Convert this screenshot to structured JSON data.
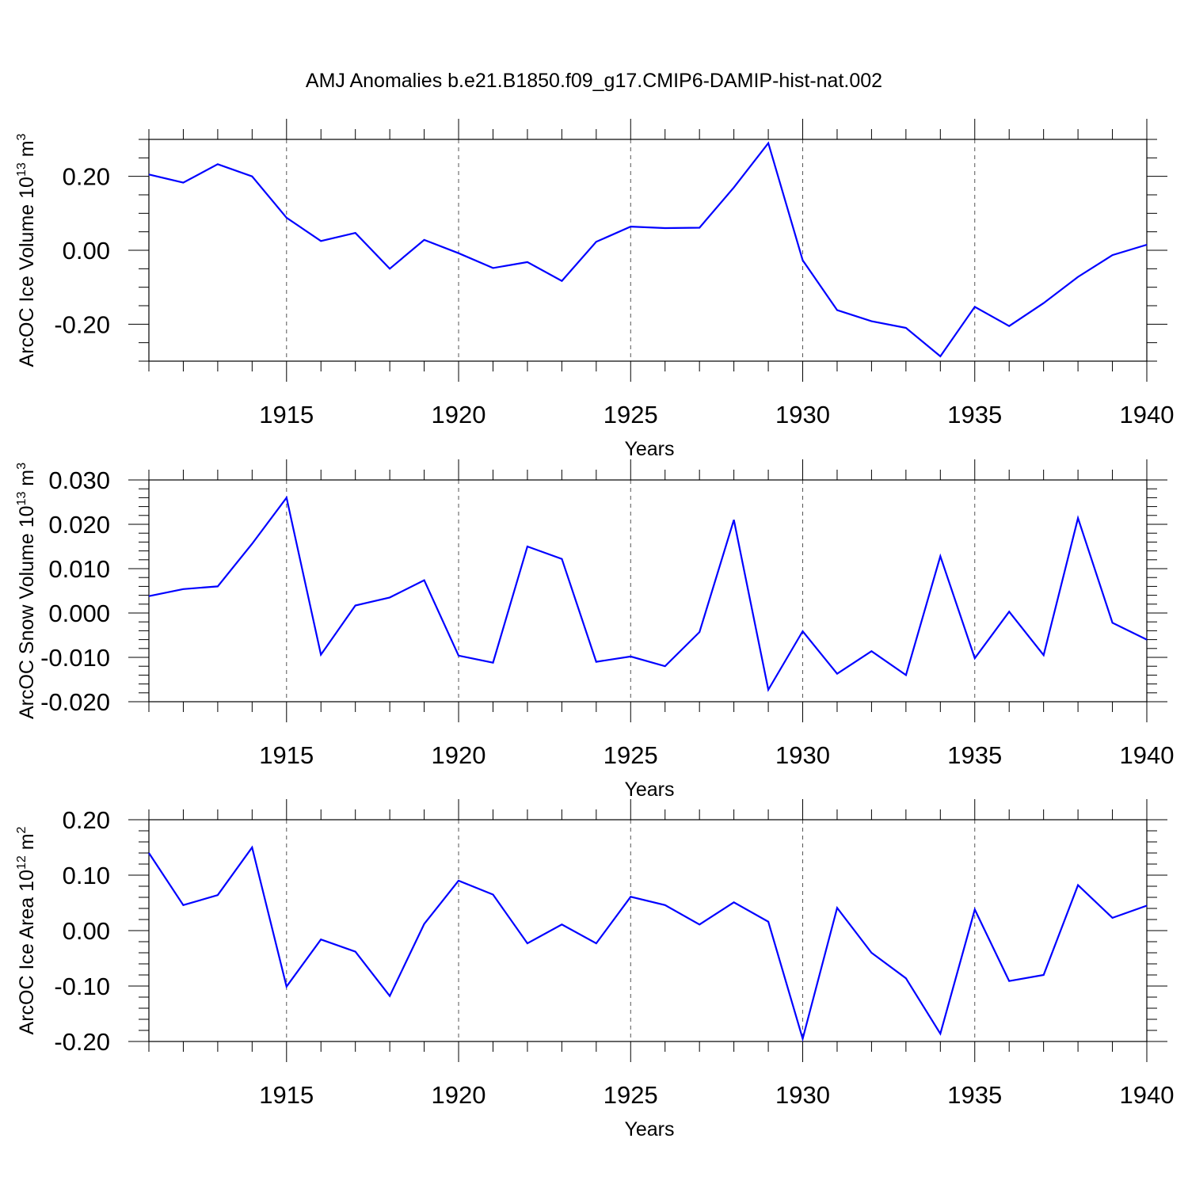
{
  "figure_title": "AMJ Anomalies b.e21.B1850.f09_g17.CMIP6-DAMIP-hist-nat.002",
  "colors": {
    "line": "#0000ff",
    "axes": "#000000",
    "grid": "#555555",
    "background": "#ffffff"
  },
  "chart_data": [
    {
      "type": "line",
      "title": "AMJ Anomalies b.e21.B1850.f09_g17.CMIP6-DAMIP-hist-nat.002",
      "xlabel": "Years",
      "ylabel_main": "ArcOC Ice Volume 10",
      "ylabel_sup": "13",
      "ylabel_unit": "m",
      "ylabel_unit_sup": "3",
      "xlim": [
        1911,
        1940
      ],
      "ylim": [
        -0.3,
        0.3
      ],
      "x_ticks": [
        1915,
        1920,
        1925,
        1930,
        1935,
        1940
      ],
      "x_tick_labels": [
        "1915",
        "1920",
        "1925",
        "1930",
        "1935",
        "1940"
      ],
      "y_ticks": [
        -0.2,
        0.0,
        0.2
      ],
      "y_tick_labels": [
        "-0.20",
        "0.00",
        "0.20"
      ],
      "y_minor_step": 0.05,
      "x_minor_step": 1,
      "grid": "vertical dashed at major x ticks",
      "x": [
        1911,
        1912,
        1913,
        1914,
        1915,
        1916,
        1917,
        1918,
        1919,
        1920,
        1921,
        1922,
        1923,
        1924,
        1925,
        1926,
        1927,
        1928,
        1929,
        1930,
        1931,
        1932,
        1933,
        1934,
        1935,
        1936,
        1937,
        1938,
        1939,
        1940
      ],
      "values": [
        0.205,
        0.183,
        0.233,
        0.2,
        0.088,
        0.025,
        0.047,
        -0.05,
        0.028,
        -0.008,
        -0.048,
        -0.032,
        -0.083,
        0.023,
        0.064,
        0.06,
        0.061,
        0.17,
        0.29,
        -0.027,
        -0.162,
        -0.192,
        -0.21,
        -0.287,
        -0.153,
        -0.205,
        -0.143,
        -0.072,
        -0.013,
        0.015
      ]
    },
    {
      "type": "line",
      "xlabel": "Years",
      "ylabel_main": "ArcOC Snow Volume 10",
      "ylabel_sup": "13",
      "ylabel_unit": "m",
      "ylabel_unit_sup": "3",
      "xlim": [
        1911,
        1940
      ],
      "ylim": [
        -0.02,
        0.03
      ],
      "x_ticks": [
        1915,
        1920,
        1925,
        1930,
        1935,
        1940
      ],
      "x_tick_labels": [
        "1915",
        "1920",
        "1925",
        "1930",
        "1935",
        "1940"
      ],
      "y_ticks": [
        -0.02,
        -0.01,
        0.0,
        0.01,
        0.02,
        0.03
      ],
      "y_tick_labels": [
        "-0.020",
        "-0.010",
        "0.000",
        "0.010",
        "0.020",
        "0.030"
      ],
      "y_minor_step": 0.002,
      "x_minor_step": 1,
      "grid": "vertical dashed at major x ticks",
      "x": [
        1911,
        1912,
        1913,
        1914,
        1915,
        1916,
        1917,
        1918,
        1919,
        1920,
        1921,
        1922,
        1923,
        1924,
        1925,
        1926,
        1927,
        1928,
        1929,
        1930,
        1931,
        1932,
        1933,
        1934,
        1935,
        1936,
        1937,
        1938,
        1939,
        1940
      ],
      "values": [
        0.0038,
        0.0054,
        0.006,
        0.0156,
        0.026,
        -0.0094,
        0.0017,
        0.0035,
        0.0074,
        -0.0096,
        -0.0112,
        0.015,
        0.0122,
        -0.011,
        -0.0098,
        -0.012,
        -0.0043,
        0.021,
        -0.0173,
        -0.0041,
        -0.0137,
        -0.0086,
        -0.014,
        0.0128,
        -0.0102,
        0.0003,
        -0.0095,
        0.0214,
        -0.0022,
        -0.006
      ]
    },
    {
      "type": "line",
      "xlabel": "Years",
      "ylabel_main": "ArcOC Ice Area 10",
      "ylabel_sup": "12",
      "ylabel_unit": "m",
      "ylabel_unit_sup": "2",
      "xlim": [
        1911,
        1940
      ],
      "ylim": [
        -0.2,
        0.2
      ],
      "x_ticks": [
        1915,
        1920,
        1925,
        1930,
        1935,
        1940
      ],
      "x_tick_labels": [
        "1915",
        "1920",
        "1925",
        "1930",
        "1935",
        "1940"
      ],
      "y_ticks": [
        -0.2,
        -0.1,
        0.0,
        0.1,
        0.2
      ],
      "y_tick_labels": [
        "-0.20",
        "-0.10",
        "0.00",
        "0.10",
        "0.20"
      ],
      "y_minor_step": 0.02,
      "x_minor_step": 1,
      "grid": "vertical dashed at major x ticks",
      "x": [
        1911,
        1912,
        1913,
        1914,
        1915,
        1916,
        1917,
        1918,
        1919,
        1920,
        1921,
        1922,
        1923,
        1924,
        1925,
        1926,
        1927,
        1928,
        1929,
        1930,
        1931,
        1932,
        1933,
        1934,
        1935,
        1936,
        1937,
        1938,
        1939,
        1940
      ],
      "values": [
        0.14,
        0.046,
        0.064,
        0.15,
        -0.101,
        -0.016,
        -0.038,
        -0.118,
        0.012,
        0.09,
        0.065,
        -0.023,
        0.011,
        -0.023,
        0.061,
        0.046,
        0.011,
        0.051,
        0.016,
        -0.195,
        0.041,
        -0.04,
        -0.086,
        -0.186,
        0.038,
        -0.091,
        -0.08,
        0.082,
        0.023,
        0.045
      ]
    }
  ]
}
